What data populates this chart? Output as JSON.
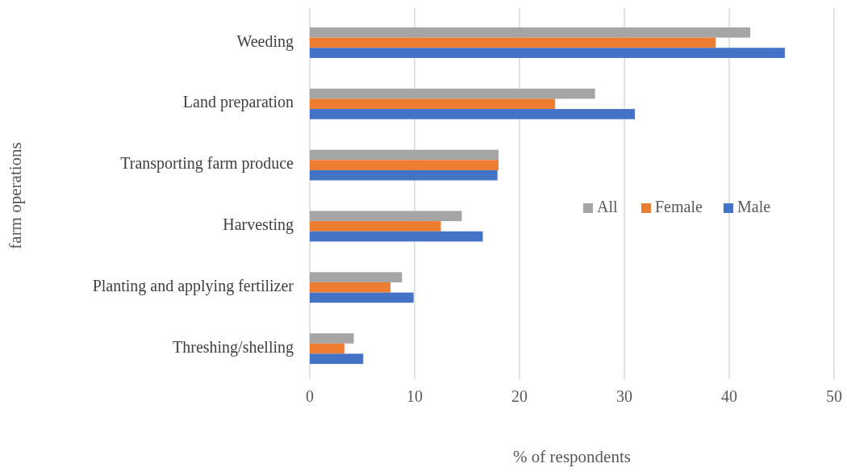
{
  "chart_data": {
    "type": "bar",
    "orientation": "horizontal",
    "xlabel": "% of respondents",
    "ylabel": "farm operations",
    "categories": [
      "Weeding",
      "Land preparation",
      "Transporting farm produce",
      "Harvesting",
      "Planting and applying fertilizer",
      "Threshing/shelling"
    ],
    "series": [
      {
        "name": "All",
        "color": "#a5a5a5",
        "values": [
          42.0,
          27.2,
          18.0,
          14.5,
          8.8,
          4.2
        ]
      },
      {
        "name": "Female",
        "color": "#ed7d31",
        "values": [
          38.7,
          23.4,
          18.0,
          12.5,
          7.7,
          3.3
        ]
      },
      {
        "name": "Male",
        "color": "#4472c4",
        "values": [
          45.3,
          31.0,
          17.9,
          16.5,
          9.9,
          5.1
        ]
      }
    ],
    "xlim": [
      0,
      50
    ],
    "xticks": [
      0,
      10,
      20,
      30,
      40,
      50
    ],
    "grid": "x",
    "legend": "right"
  }
}
